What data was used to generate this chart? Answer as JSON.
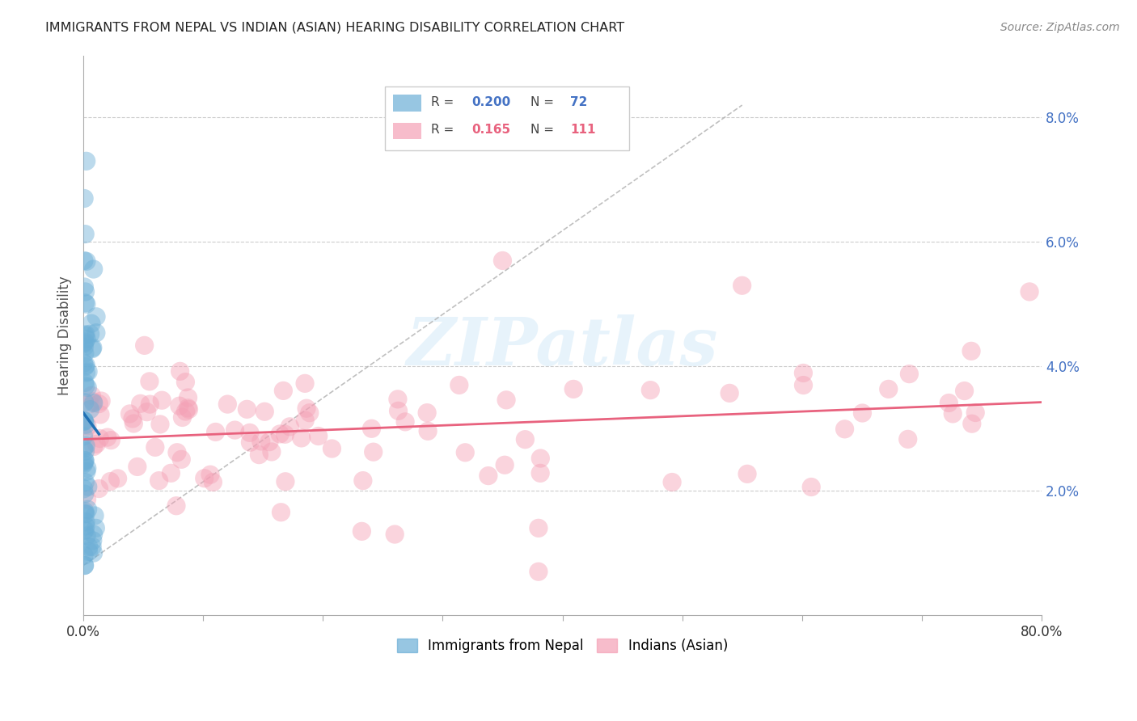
{
  "title": "IMMIGRANTS FROM NEPAL VS INDIAN (ASIAN) HEARING DISABILITY CORRELATION CHART",
  "source": "Source: ZipAtlas.com",
  "ylabel": "Hearing Disability",
  "xlim": [
    0,
    0.8
  ],
  "ylim": [
    0,
    0.09
  ],
  "xticks": [
    0.0,
    0.1,
    0.2,
    0.3,
    0.4,
    0.5,
    0.6,
    0.7,
    0.8
  ],
  "xticklabels": [
    "0.0%",
    "",
    "",
    "",
    "",
    "",
    "",
    "",
    "80.0%"
  ],
  "yticks_right": [
    0.02,
    0.04,
    0.06,
    0.08
  ],
  "yticklabels_right": [
    "2.0%",
    "4.0%",
    "6.0%",
    "8.0%"
  ],
  "nepal_R": "0.200",
  "nepal_N": "72",
  "indian_R": "0.165",
  "indian_N": "111",
  "nepal_color": "#6baed6",
  "indian_color": "#f4a0b5",
  "nepal_line_color": "#2171b5",
  "indian_line_color": "#e8627e",
  "dashed_line_color": "#b0b0b0",
  "watermark": "ZIPatlas",
  "grid_color": "#cccccc"
}
